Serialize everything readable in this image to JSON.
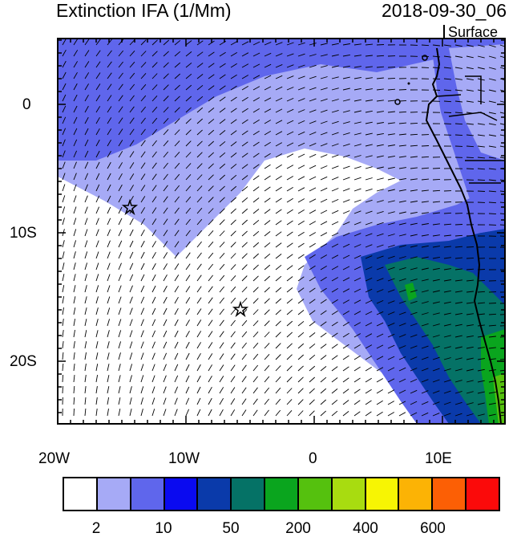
{
  "title": "Extinction IFA (1/Mm)",
  "datetime": "2018-09-30_06",
  "level_label": "Surface",
  "axes": {
    "x_ticks": [
      "20W",
      "10W",
      "0",
      "10E"
    ],
    "y_ticks": [
      "0",
      "10S",
      "20S"
    ]
  },
  "colorbar": {
    "colors": [
      "#ffffff",
      "#a6aaf6",
      "#5f66ec",
      "#0a0af0",
      "#0a3aaa",
      "#057266",
      "#0aa51e",
      "#55c10e",
      "#a8dc10",
      "#f7f503",
      "#fcb305",
      "#fc5f05",
      "#fb0a0a"
    ],
    "labels": [
      "2",
      "10",
      "50",
      "200",
      "400",
      "600"
    ]
  },
  "markers": [
    "star",
    "star"
  ]
}
